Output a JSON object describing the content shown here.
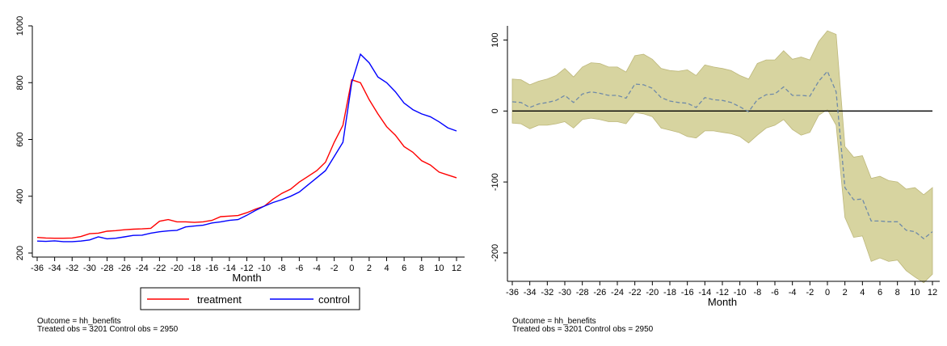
{
  "chart_data": [
    {
      "type": "line",
      "xlabel": "Month",
      "ylabel": "",
      "xlim": [
        -36,
        12
      ],
      "ylim": [
        200,
        1000
      ],
      "x_ticks": [
        -36,
        -34,
        -32,
        -30,
        -28,
        -26,
        -24,
        -22,
        -20,
        -18,
        -16,
        -14,
        -12,
        -10,
        -8,
        -6,
        -4,
        -2,
        0,
        2,
        4,
        6,
        8,
        10,
        12
      ],
      "y_ticks": [
        200,
        400,
        600,
        800,
        1000
      ],
      "x": [
        -36,
        -35,
        -34,
        -33,
        -32,
        -31,
        -30,
        -29,
        -28,
        -27,
        -26,
        -25,
        -24,
        -23,
        -22,
        -21,
        -20,
        -19,
        -18,
        -17,
        -16,
        -15,
        -14,
        -13,
        -12,
        -11,
        -10,
        -9,
        -8,
        -7,
        -6,
        -5,
        -4,
        -3,
        -2,
        -1,
        0,
        1,
        2,
        3,
        4,
        5,
        6,
        7,
        8,
        9,
        10,
        11,
        12
      ],
      "series": [
        {
          "name": "treatment",
          "color": "#ff0000",
          "values": [
            255,
            253,
            252,
            252,
            253,
            258,
            268,
            270,
            277,
            279,
            282,
            284,
            285,
            287,
            312,
            318,
            310,
            310,
            308,
            310,
            315,
            328,
            330,
            332,
            342,
            355,
            365,
            390,
            410,
            425,
            450,
            470,
            490,
            520,
            590,
            650,
            810,
            800,
            740,
            690,
            645,
            615,
            575,
            555,
            525,
            510,
            485,
            475,
            465
          ]
        },
        {
          "name": "control",
          "color": "#0000ff",
          "values": [
            242,
            241,
            243,
            240,
            240,
            242,
            246,
            257,
            250,
            252,
            257,
            262,
            263,
            270,
            275,
            278,
            280,
            292,
            295,
            298,
            306,
            310,
            315,
            318,
            333,
            350,
            365,
            378,
            388,
            400,
            415,
            440,
            465,
            490,
            540,
            590,
            800,
            900,
            870,
            820,
            800,
            768,
            728,
            705,
            690,
            680,
            662,
            641,
            630
          ]
        }
      ],
      "legend": [
        "treatment",
        "control"
      ],
      "legend_position": "bottom",
      "notes": [
        "Outcome = hh_benefits",
        "Treated obs = 3201 Control obs = 2950"
      ]
    },
    {
      "type": "area",
      "xlabel": "Month",
      "ylabel": "",
      "xlim": [
        -36,
        12
      ],
      "ylim": [
        -240,
        120
      ],
      "x_ticks": [
        -36,
        -34,
        -32,
        -30,
        -28,
        -26,
        -24,
        -22,
        -20,
        -18,
        -16,
        -14,
        -12,
        -10,
        -8,
        -6,
        -4,
        -2,
        0,
        2,
        4,
        6,
        8,
        10,
        12
      ],
      "y_ticks": [
        -200,
        -100,
        0,
        100
      ],
      "reference_line": 0,
      "band_color": "#d7d4a0",
      "band_edge_color": "#bdb77a",
      "estimate_color": "#6f8aa8",
      "x": [
        -36,
        -35,
        -34,
        -33,
        -32,
        -31,
        -30,
        -29,
        -28,
        -27,
        -26,
        -25,
        -24,
        -23,
        -22,
        -21,
        -20,
        -19,
        -18,
        -17,
        -16,
        -15,
        -14,
        -13,
        -12,
        -11,
        -10,
        -9,
        -8,
        -7,
        -6,
        -5,
        -4,
        -3,
        -2,
        -1,
        0,
        1,
        2,
        3,
        4,
        5,
        6,
        7,
        8,
        9,
        10,
        11,
        12
      ],
      "estimate": [
        13,
        12,
        5,
        10,
        12,
        15,
        22,
        12,
        24,
        27,
        25,
        22,
        22,
        18,
        38,
        37,
        32,
        19,
        14,
        12,
        11,
        5,
        19,
        16,
        15,
        12,
        6,
        -1,
        16,
        23,
        24,
        34,
        22,
        22,
        21,
        42,
        56,
        27,
        -108,
        -125,
        -124,
        -155,
        -155,
        -156,
        -156,
        -168,
        -170,
        -180,
        -170
      ],
      "upper": [
        45,
        44,
        37,
        42,
        45,
        50,
        60,
        48,
        62,
        68,
        67,
        62,
        62,
        55,
        78,
        80,
        73,
        60,
        57,
        56,
        58,
        50,
        65,
        62,
        60,
        57,
        50,
        45,
        67,
        72,
        72,
        85,
        73,
        76,
        72,
        98,
        113,
        108,
        -50,
        -65,
        -63,
        -95,
        -92,
        -98,
        -100,
        -110,
        -108,
        -118,
        -108
      ],
      "lower": [
        -17,
        -18,
        -25,
        -20,
        -20,
        -18,
        -15,
        -24,
        -12,
        -10,
        -12,
        -15,
        -15,
        -18,
        -2,
        -4,
        -8,
        -24,
        -27,
        -30,
        -36,
        -38,
        -28,
        -28,
        -30,
        -32,
        -36,
        -45,
        -34,
        -24,
        -20,
        -12,
        -26,
        -34,
        -30,
        -6,
        2,
        -20,
        -150,
        -178,
        -176,
        -212,
        -207,
        -212,
        -210,
        -225,
        -234,
        -242,
        -230
      ],
      "notes": [
        "Outcome = hh_benefits",
        "Treated obs = 3201 Control obs = 2950"
      ]
    }
  ]
}
